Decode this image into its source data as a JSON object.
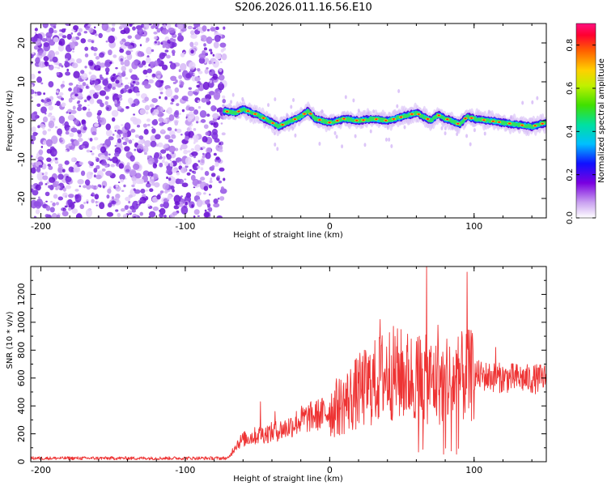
{
  "title": "S206.2026.011.16.56.E10",
  "colors": {
    "snr_line": "#ee3333",
    "noise_purple": "#8a2be2",
    "axis": "#000000"
  },
  "chart_data": [
    {
      "type": "heatmap",
      "xlabel": "Height of straight line (km)",
      "ylabel": "Frequency (Hz)",
      "xlim": [
        -207,
        150
      ],
      "ylim": [
        -25,
        25
      ],
      "xticks": [
        -200,
        -100,
        0,
        100
      ],
      "xtick_labels": [
        "-200",
        "-100",
        "0",
        "100"
      ],
      "yticks": [
        -20,
        -10,
        0,
        10,
        20
      ],
      "ytick_labels": [
        "-20",
        "-10",
        "0",
        "10",
        "20"
      ],
      "noise_region_x": [
        -207,
        -73
      ],
      "signal_track": {
        "x": [
          -73,
          -65,
          -60,
          -55,
          -50,
          -45,
          -40,
          -35,
          -30,
          -20,
          -15,
          -10,
          0,
          10,
          20,
          30,
          40,
          50,
          60,
          65,
          70,
          75,
          80,
          85,
          90,
          95,
          100,
          110,
          120,
          130,
          140,
          150
        ],
        "freq": [
          2.5,
          2.0,
          3.0,
          2.2,
          1.5,
          0.5,
          -0.5,
          -1.5,
          -0.5,
          1.0,
          2.5,
          0.5,
          -0.5,
          0.5,
          0.0,
          0.5,
          0.0,
          1.0,
          2.0,
          1.0,
          0.0,
          1.5,
          0.5,
          0.0,
          -1.0,
          1.0,
          0.5,
          0.0,
          -0.5,
          -1.0,
          -1.5,
          -0.5
        ]
      },
      "colorbar": {
        "label": "Normalized spectral amplitude",
        "range": [
          0.0,
          0.9
        ],
        "ticks": [
          0.0,
          0.2,
          0.4,
          0.6,
          0.8
        ],
        "tick_labels": [
          "0.0",
          "0.2",
          "0.4",
          "0.6",
          "0.8"
        ]
      }
    },
    {
      "type": "line",
      "xlabel": "Height of straight line (km)",
      "ylabel": "SNR (10 * v/v)",
      "xlim": [
        -207,
        150
      ],
      "ylim": [
        0,
        1400
      ],
      "xticks": [
        -200,
        -100,
        0,
        100
      ],
      "xtick_labels": [
        "-200",
        "-100",
        "0",
        "100"
      ],
      "yticks": [
        0,
        200,
        400,
        600,
        800,
        1000,
        1200
      ],
      "ytick_labels": [
        "0",
        "200",
        "400",
        "600",
        "800",
        "1000",
        "1200"
      ],
      "series": [
        {
          "name": "SNR",
          "envelope_x": [
            -207,
            -70,
            -65,
            -60,
            -50,
            -40,
            -30,
            -20,
            -10,
            0,
            10,
            20,
            30,
            40,
            50,
            60,
            70,
            80,
            90,
            100,
            110,
            120,
            130,
            140,
            150
          ],
          "envelope_y": [
            25,
            25,
            120,
            160,
            190,
            210,
            240,
            300,
            330,
            360,
            420,
            500,
            560,
            640,
            620,
            600,
            580,
            560,
            600,
            620,
            610,
            600,
            600,
            590,
            600
          ],
          "spikes": [
            {
              "x": -48,
              "y": 430
            },
            {
              "x": -38,
              "y": 360
            },
            {
              "x": 5,
              "y": 520
            },
            {
              "x": 20,
              "y": 640
            },
            {
              "x": 35,
              "y": 1020
            },
            {
              "x": 50,
              "y": 780
            },
            {
              "x": 62,
              "y": 900
            },
            {
              "x": 67,
              "y": 1400
            },
            {
              "x": 75,
              "y": 980
            },
            {
              "x": 81,
              "y": 880
            },
            {
              "x": 95,
              "y": 1360
            },
            {
              "x": 115,
              "y": 820
            }
          ]
        }
      ]
    }
  ]
}
